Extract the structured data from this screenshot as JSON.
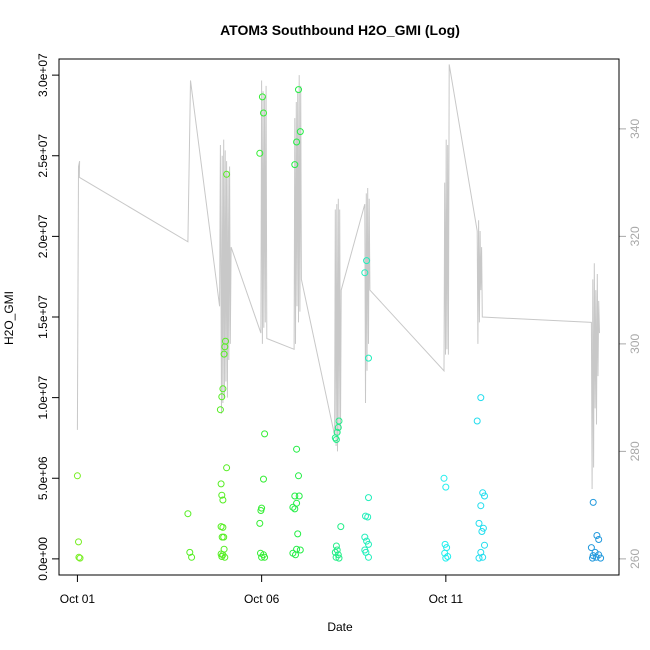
{
  "chart_data": {
    "type": "scatter",
    "title": "ATOM3 Southbound H2O_GMI (Log)",
    "xlabel": "Date",
    "ylabel": "H2O_GMI",
    "x_unit": "days since Oct 01",
    "xlim": [
      -0.5,
      14.7
    ],
    "ylim": [
      -1000000,
      31000000
    ],
    "y2lim": [
      257,
      353
    ],
    "x_ticks": [
      {
        "value": 0,
        "label": "Oct 01"
      },
      {
        "value": 5,
        "label": "Oct 06"
      },
      {
        "value": 10,
        "label": "Oct 11"
      }
    ],
    "y_ticks": [
      {
        "value": 0,
        "label": "0.0e+00"
      },
      {
        "value": 5000000,
        "label": "5.0e+06"
      },
      {
        "value": 10000000,
        "label": "1.0e+07"
      },
      {
        "value": 15000000,
        "label": "1.5e+07"
      },
      {
        "value": 20000000,
        "label": "2.0e+07"
      },
      {
        "value": 25000000,
        "label": "2.5e+07"
      },
      {
        "value": 30000000,
        "label": "3.0e+07"
      }
    ],
    "y2_ticks": [
      {
        "value": 260,
        "label": "260"
      },
      {
        "value": 280,
        "label": "280"
      },
      {
        "value": 300,
        "label": "300"
      },
      {
        "value": 320,
        "label": "320"
      },
      {
        "value": 340,
        "label": "340"
      }
    ],
    "grid": false,
    "line_color": "#c8c8c8",
    "series": [
      {
        "color": "#77ee22",
        "points": [
          [
            0.0,
            5150000
          ],
          [
            0.03,
            1050000
          ],
          [
            0.04,
            100000
          ],
          [
            0.07,
            50000
          ]
        ]
      },
      {
        "color": "#55ee22",
        "points": [
          [
            3.0,
            2800000
          ],
          [
            3.05,
            400000
          ],
          [
            3.1,
            100000
          ],
          [
            3.88,
            9250000
          ],
          [
            3.92,
            10050000
          ],
          [
            3.95,
            10550000
          ],
          [
            3.9,
            4650000
          ],
          [
            3.92,
            3950000
          ],
          [
            3.95,
            3650000
          ],
          [
            3.9,
            2000000
          ],
          [
            3.95,
            1950000
          ],
          [
            3.93,
            1350000
          ],
          [
            3.97,
            1350000
          ],
          [
            3.9,
            300000
          ],
          [
            3.95,
            250000
          ],
          [
            3.92,
            150000
          ],
          [
            4.0,
            100000
          ],
          [
            3.98,
            600000
          ],
          [
            4.02,
            13500000
          ],
          [
            4.0,
            13150000
          ],
          [
            3.98,
            12700000
          ],
          [
            4.05,
            23850000
          ],
          [
            4.05,
            5650000
          ]
        ]
      },
      {
        "color": "#33ee33",
        "points": [
          [
            4.95,
            25150000
          ],
          [
            5.02,
            28650000
          ],
          [
            5.05,
            27650000
          ],
          [
            5.08,
            7750000
          ],
          [
            5.05,
            4950000
          ],
          [
            5.0,
            3150000
          ],
          [
            4.98,
            3000000
          ],
          [
            4.95,
            2200000
          ],
          [
            4.97,
            350000
          ],
          [
            5.05,
            250000
          ],
          [
            5.0,
            100000
          ],
          [
            5.08,
            100000
          ]
        ]
      },
      {
        "color": "#22ee44",
        "points": [
          [
            5.9,
            24450000
          ],
          [
            5.95,
            25850000
          ],
          [
            6.0,
            29100000
          ],
          [
            6.05,
            26500000
          ],
          [
            5.95,
            6800000
          ],
          [
            6.0,
            5150000
          ],
          [
            5.9,
            3900000
          ],
          [
            6.02,
            3900000
          ],
          [
            5.85,
            3200000
          ],
          [
            5.95,
            3450000
          ],
          [
            5.9,
            3100000
          ],
          [
            5.98,
            1550000
          ],
          [
            5.95,
            600000
          ],
          [
            6.05,
            550000
          ],
          [
            5.85,
            350000
          ],
          [
            5.92,
            250000
          ]
        ]
      },
      {
        "color": "#22ee88",
        "points": [
          [
            7.0,
            7500000
          ],
          [
            7.03,
            7400000
          ],
          [
            7.05,
            7850000
          ],
          [
            7.08,
            8150000
          ],
          [
            7.1,
            8550000
          ],
          [
            7.15,
            2000000
          ],
          [
            7.03,
            800000
          ],
          [
            7.05,
            550000
          ],
          [
            7.0,
            400000
          ],
          [
            7.08,
            250000
          ],
          [
            7.02,
            100000
          ],
          [
            7.1,
            50000
          ]
        ]
      },
      {
        "color": "#22eebb",
        "points": [
          [
            7.8,
            17750000
          ],
          [
            7.85,
            18500000
          ],
          [
            7.9,
            12450000
          ],
          [
            7.9,
            3800000
          ],
          [
            7.82,
            2650000
          ],
          [
            7.88,
            2600000
          ],
          [
            7.8,
            1350000
          ],
          [
            7.85,
            1100000
          ],
          [
            7.9,
            900000
          ],
          [
            7.8,
            550000
          ],
          [
            7.83,
            400000
          ],
          [
            7.9,
            100000
          ]
        ]
      },
      {
        "color": "#22eeee",
        "points": [
          [
            9.95,
            5000000
          ],
          [
            10.0,
            4450000
          ],
          [
            9.98,
            900000
          ],
          [
            10.02,
            700000
          ],
          [
            9.97,
            350000
          ],
          [
            10.05,
            150000
          ],
          [
            10.0,
            50000
          ]
        ]
      },
      {
        "color": "#22ddee",
        "points": [
          [
            10.85,
            8550000
          ],
          [
            10.95,
            10000000
          ],
          [
            11.0,
            4100000
          ],
          [
            11.05,
            3900000
          ],
          [
            10.95,
            3300000
          ],
          [
            10.9,
            2200000
          ],
          [
            11.02,
            1900000
          ],
          [
            10.98,
            1700000
          ],
          [
            11.05,
            850000
          ],
          [
            10.95,
            400000
          ],
          [
            11.0,
            100000
          ],
          [
            10.9,
            50000
          ]
        ]
      },
      {
        "color": "#2299dd",
        "points": [
          [
            14.0,
            3500000
          ],
          [
            14.1,
            1450000
          ],
          [
            14.15,
            1200000
          ],
          [
            13.95,
            700000
          ],
          [
            14.05,
            400000
          ],
          [
            14.15,
            250000
          ],
          [
            14.0,
            200000
          ],
          [
            14.08,
            100000
          ],
          [
            13.98,
            50000
          ],
          [
            14.2,
            50000
          ]
        ]
      }
    ],
    "line_path": [
      [
        0.0,
        284
      ],
      [
        0.03,
        333
      ],
      [
        0.06,
        334
      ],
      [
        0.05,
        331
      ],
      [
        3.0,
        319
      ],
      [
        3.07,
        349
      ],
      [
        3.86,
        307
      ],
      [
        3.88,
        337
      ],
      [
        3.91,
        287
      ],
      [
        3.93,
        335
      ],
      [
        3.95,
        289
      ],
      [
        3.97,
        338
      ],
      [
        3.99,
        290
      ],
      [
        4.01,
        336
      ],
      [
        4.03,
        293
      ],
      [
        4.05,
        334
      ],
      [
        4.07,
        290
      ],
      [
        4.09,
        332
      ],
      [
        4.11,
        297
      ],
      [
        4.13,
        333
      ],
      [
        4.15,
        300
      ],
      [
        4.17,
        318
      ],
      [
        4.98,
        302
      ],
      [
        5.0,
        349
      ],
      [
        5.02,
        300
      ],
      [
        5.04,
        347
      ],
      [
        5.06,
        303
      ],
      [
        5.08,
        346
      ],
      [
        5.1,
        304
      ],
      [
        5.12,
        348
      ],
      [
        5.14,
        301
      ],
      [
        5.88,
        299
      ],
      [
        5.9,
        342
      ],
      [
        5.92,
        300
      ],
      [
        5.94,
        345
      ],
      [
        5.96,
        307
      ],
      [
        5.98,
        347
      ],
      [
        6.0,
        304
      ],
      [
        6.02,
        350
      ],
      [
        6.04,
        306
      ],
      [
        6.06,
        348
      ],
      [
        6.08,
        312
      ],
      [
        6.98,
        283
      ],
      [
        7.0,
        325
      ],
      [
        7.02,
        281
      ],
      [
        7.04,
        326
      ],
      [
        7.06,
        280
      ],
      [
        7.08,
        327
      ],
      [
        7.1,
        283
      ],
      [
        7.12,
        325
      ],
      [
        7.14,
        284
      ],
      [
        7.16,
        310
      ],
      [
        7.8,
        326
      ],
      [
        7.82,
        289
      ],
      [
        7.84,
        328
      ],
      [
        7.86,
        295
      ],
      [
        7.88,
        329
      ],
      [
        7.9,
        300
      ],
      [
        7.92,
        327
      ],
      [
        7.94,
        310
      ],
      [
        9.95,
        295
      ],
      [
        9.97,
        330
      ],
      [
        9.99,
        298
      ],
      [
        10.01,
        338
      ],
      [
        10.03,
        299
      ],
      [
        10.05,
        337
      ],
      [
        10.07,
        298
      ],
      [
        10.09,
        352
      ],
      [
        10.85,
        321
      ],
      [
        10.87,
        300
      ],
      [
        10.89,
        323
      ],
      [
        10.91,
        304
      ],
      [
        10.93,
        321
      ],
      [
        10.95,
        310
      ],
      [
        10.97,
        318
      ],
      [
        10.99,
        305
      ],
      [
        13.95,
        304
      ],
      [
        13.97,
        273
      ],
      [
        13.99,
        312
      ],
      [
        14.01,
        277
      ],
      [
        14.03,
        315
      ],
      [
        14.05,
        288
      ],
      [
        14.07,
        310
      ],
      [
        14.09,
        285
      ],
      [
        14.11,
        313
      ],
      [
        14.13,
        294
      ],
      [
        14.15,
        308
      ],
      [
        14.17,
        302
      ]
    ]
  }
}
